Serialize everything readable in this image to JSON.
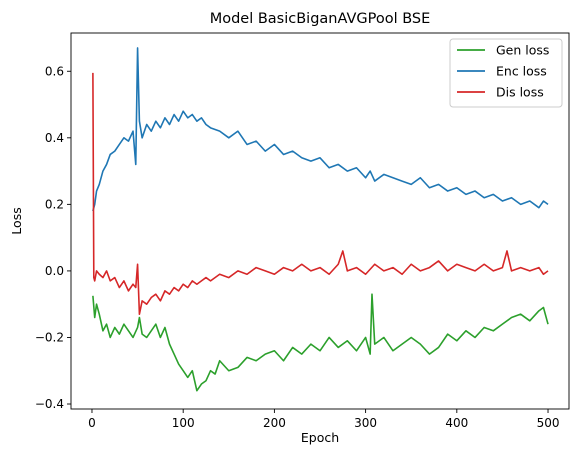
{
  "chart_data": {
    "type": "line",
    "title": "Model BasicBiganAVGPool BSE",
    "xlabel": "Epoch",
    "ylabel": "Loss",
    "xlim": [
      -23,
      523
    ],
    "ylim": [
      -0.415,
      0.715
    ],
    "x_ticks": [
      0,
      100,
      200,
      300,
      400,
      500
    ],
    "x_tick_labels": [
      "0",
      "100",
      "200",
      "300",
      "400",
      "500"
    ],
    "y_ticks": [
      -0.4,
      -0.2,
      0.0,
      0.2,
      0.4,
      0.6
    ],
    "y_tick_labels": [
      "−0.4",
      "−0.2",
      "0.0",
      "0.2",
      "0.4",
      "0.6"
    ],
    "grid": false,
    "legend_position": "top-right",
    "series": [
      {
        "name": "Gen loss",
        "color": "#2ca02c",
        "x": [
          1,
          3,
          5,
          8,
          12,
          16,
          20,
          25,
          30,
          35,
          40,
          45,
          50,
          52,
          55,
          60,
          65,
          70,
          75,
          80,
          85,
          90,
          95,
          100,
          105,
          110,
          115,
          120,
          125,
          130,
          135,
          140,
          150,
          160,
          170,
          180,
          190,
          200,
          210,
          220,
          230,
          240,
          250,
          260,
          270,
          280,
          290,
          300,
          305,
          307,
          310,
          320,
          330,
          340,
          350,
          360,
          370,
          380,
          390,
          400,
          410,
          420,
          430,
          440,
          450,
          460,
          470,
          480,
          490,
          495,
          500
        ],
        "values": [
          -0.075,
          -0.14,
          -0.1,
          -0.13,
          -0.18,
          -0.16,
          -0.2,
          -0.17,
          -0.19,
          -0.16,
          -0.18,
          -0.2,
          -0.17,
          -0.14,
          -0.19,
          -0.2,
          -0.18,
          -0.16,
          -0.2,
          -0.17,
          -0.22,
          -0.25,
          -0.28,
          -0.3,
          -0.32,
          -0.3,
          -0.36,
          -0.34,
          -0.33,
          -0.3,
          -0.31,
          -0.27,
          -0.3,
          -0.29,
          -0.26,
          -0.27,
          -0.25,
          -0.24,
          -0.27,
          -0.23,
          -0.25,
          -0.22,
          -0.24,
          -0.2,
          -0.23,
          -0.21,
          -0.24,
          -0.2,
          -0.25,
          -0.07,
          -0.22,
          -0.2,
          -0.24,
          -0.22,
          -0.2,
          -0.22,
          -0.25,
          -0.23,
          -0.19,
          -0.21,
          -0.18,
          -0.2,
          -0.17,
          -0.18,
          -0.16,
          -0.14,
          -0.13,
          -0.15,
          -0.12,
          -0.11,
          -0.16
        ]
      },
      {
        "name": "Enc loss",
        "color": "#1f77b4",
        "x": [
          1,
          3,
          5,
          8,
          12,
          16,
          20,
          25,
          30,
          35,
          40,
          45,
          48,
          50,
          52,
          55,
          60,
          65,
          70,
          75,
          80,
          85,
          90,
          95,
          100,
          105,
          110,
          115,
          120,
          125,
          130,
          140,
          150,
          160,
          170,
          180,
          190,
          200,
          210,
          220,
          230,
          240,
          250,
          260,
          270,
          280,
          290,
          300,
          305,
          310,
          320,
          330,
          340,
          350,
          360,
          370,
          380,
          390,
          400,
          410,
          420,
          430,
          440,
          450,
          460,
          470,
          480,
          490,
          495,
          500
        ],
        "values": [
          0.18,
          0.2,
          0.24,
          0.26,
          0.3,
          0.32,
          0.35,
          0.36,
          0.38,
          0.4,
          0.39,
          0.42,
          0.32,
          0.67,
          0.45,
          0.4,
          0.44,
          0.42,
          0.45,
          0.43,
          0.46,
          0.44,
          0.47,
          0.45,
          0.48,
          0.46,
          0.47,
          0.45,
          0.46,
          0.44,
          0.43,
          0.42,
          0.4,
          0.42,
          0.38,
          0.39,
          0.36,
          0.38,
          0.35,
          0.36,
          0.34,
          0.33,
          0.34,
          0.31,
          0.32,
          0.3,
          0.31,
          0.28,
          0.3,
          0.27,
          0.29,
          0.28,
          0.27,
          0.26,
          0.28,
          0.25,
          0.26,
          0.24,
          0.25,
          0.23,
          0.24,
          0.22,
          0.23,
          0.21,
          0.22,
          0.2,
          0.21,
          0.19,
          0.21,
          0.2
        ]
      },
      {
        "name": "Dis loss",
        "color": "#d62728",
        "x": [
          1,
          2,
          3,
          5,
          8,
          12,
          16,
          20,
          25,
          30,
          35,
          40,
          45,
          48,
          50,
          52,
          55,
          60,
          65,
          70,
          75,
          80,
          85,
          90,
          95,
          100,
          105,
          110,
          115,
          120,
          125,
          130,
          140,
          150,
          160,
          170,
          180,
          190,
          200,
          210,
          220,
          230,
          240,
          250,
          260,
          270,
          275,
          280,
          290,
          300,
          310,
          320,
          330,
          340,
          350,
          360,
          370,
          380,
          390,
          400,
          410,
          420,
          430,
          440,
          450,
          455,
          460,
          470,
          480,
          490,
          495,
          500
        ],
        "values": [
          0.595,
          -0.02,
          -0.03,
          0.0,
          -0.01,
          -0.02,
          0.0,
          -0.03,
          -0.02,
          -0.05,
          -0.03,
          -0.06,
          -0.04,
          -0.05,
          0.02,
          -0.13,
          -0.09,
          -0.1,
          -0.08,
          -0.07,
          -0.09,
          -0.06,
          -0.07,
          -0.05,
          -0.06,
          -0.04,
          -0.05,
          -0.03,
          -0.04,
          -0.03,
          -0.02,
          -0.03,
          -0.01,
          -0.02,
          0.0,
          -0.01,
          0.01,
          0.0,
          -0.01,
          0.01,
          0.0,
          0.02,
          0.0,
          0.01,
          -0.01,
          0.02,
          0.06,
          0.0,
          0.01,
          -0.01,
          0.02,
          0.0,
          0.01,
          -0.01,
          0.02,
          0.0,
          0.01,
          0.03,
          0.0,
          0.02,
          0.01,
          0.0,
          0.02,
          0.0,
          0.01,
          0.06,
          0.0,
          0.01,
          0.0,
          0.01,
          -0.01,
          0.0
        ]
      }
    ]
  }
}
